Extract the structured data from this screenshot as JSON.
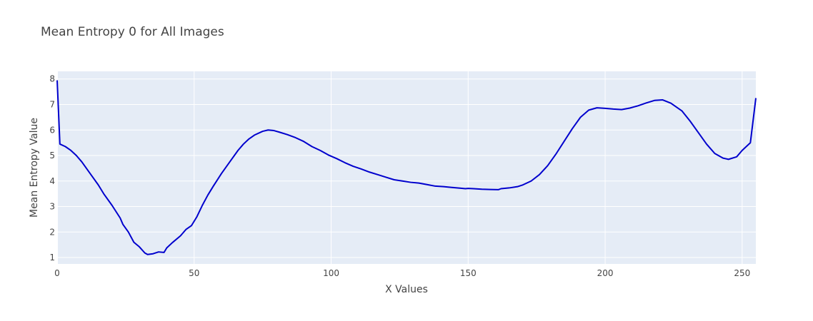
{
  "chart_data": {
    "type": "line",
    "title": "Mean Entropy 0 for All Images",
    "xlabel": "X Values",
    "ylabel": "Mean Entropy Value",
    "xlim": [
      0,
      255
    ],
    "ylim": [
      0.75,
      8.3
    ],
    "x_ticks": [
      0,
      50,
      100,
      150,
      200,
      250
    ],
    "y_ticks": [
      1,
      2,
      3,
      4,
      5,
      6,
      7,
      8
    ],
    "x_tick_labels": [
      "0",
      "50",
      "100",
      "150",
      "200",
      "250"
    ],
    "y_tick_labels": [
      "1",
      "2",
      "3",
      "4",
      "5",
      "6",
      "7",
      "8"
    ],
    "grid": true,
    "plot_background": "#e5ecf6",
    "grid_color": "#ffffff",
    "series": [
      {
        "color": "#0000cd",
        "x": [
          0,
          1,
          3,
          5,
          7,
          9,
          12,
          15,
          17,
          20,
          23,
          24,
          26,
          28,
          30,
          32,
          33,
          35,
          37,
          39,
          40,
          42,
          45,
          47,
          49,
          51,
          53,
          55,
          57,
          60,
          63,
          66,
          68,
          70,
          72,
          75,
          77,
          79,
          81,
          84,
          87,
          90,
          93,
          96,
          99,
          102,
          105,
          108,
          111,
          114,
          117,
          120,
          123,
          126,
          129,
          132,
          135,
          138,
          141,
          144,
          147,
          149,
          150,
          152,
          155,
          158,
          161,
          162,
          165,
          168,
          170,
          173,
          176,
          179,
          182,
          185,
          188,
          191,
          194,
          197,
          200,
          203,
          206,
          209,
          212,
          215,
          218,
          221,
          224,
          228,
          231,
          234,
          237,
          240,
          243,
          245,
          248,
          250,
          253,
          255
        ],
        "y": [
          7.95,
          5.45,
          5.35,
          5.2,
          5.0,
          4.75,
          4.3,
          3.85,
          3.5,
          3.05,
          2.55,
          2.3,
          2.0,
          1.6,
          1.42,
          1.18,
          1.12,
          1.15,
          1.22,
          1.2,
          1.38,
          1.58,
          1.85,
          2.1,
          2.25,
          2.6,
          3.05,
          3.45,
          3.8,
          4.3,
          4.75,
          5.2,
          5.45,
          5.65,
          5.8,
          5.95,
          6.0,
          5.98,
          5.92,
          5.82,
          5.7,
          5.55,
          5.35,
          5.2,
          5.02,
          4.88,
          4.72,
          4.58,
          4.47,
          4.35,
          4.25,
          4.15,
          4.05,
          4.0,
          3.95,
          3.92,
          3.86,
          3.8,
          3.78,
          3.75,
          3.72,
          3.7,
          3.71,
          3.7,
          3.68,
          3.67,
          3.66,
          3.7,
          3.73,
          3.78,
          3.85,
          4.0,
          4.25,
          4.6,
          5.05,
          5.55,
          6.05,
          6.5,
          6.78,
          6.87,
          6.85,
          6.82,
          6.8,
          6.86,
          6.95,
          7.06,
          7.16,
          7.18,
          7.05,
          6.75,
          6.35,
          5.9,
          5.45,
          5.08,
          4.9,
          4.85,
          4.95,
          5.2,
          5.5,
          7.25
        ]
      }
    ]
  }
}
